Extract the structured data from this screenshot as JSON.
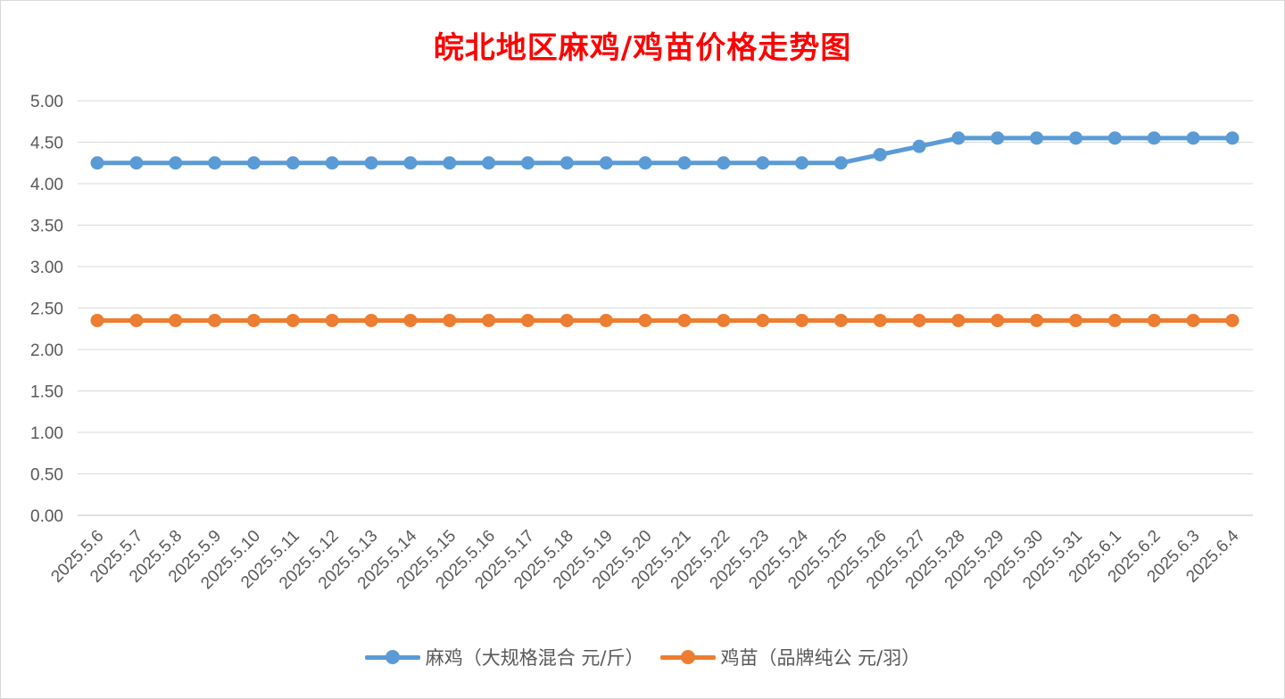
{
  "chart_data": {
    "type": "line",
    "title": "皖北地区麻鸡/鸡苗价格走势图",
    "categories": [
      "2025.5.6",
      "2025.5.7",
      "2025.5.8",
      "2025.5.9",
      "2025.5.10",
      "2025.5.11",
      "2025.5.12",
      "2025.5.13",
      "2025.5.14",
      "2025.5.15",
      "2025.5.16",
      "2025.5.17",
      "2025.5.18",
      "2025.5.19",
      "2025.5.20",
      "2025.5.21",
      "2025.5.22",
      "2025.5.23",
      "2025.5.24",
      "2025.5.25",
      "2025.5.26",
      "2025.5.27",
      "2025.5.28",
      "2025.5.29",
      "2025.5.30",
      "2025.5.31",
      "2025.6.1",
      "2025.6.2",
      "2025.6.3",
      "2025.6.4"
    ],
    "series": [
      {
        "name": "麻鸡（大规格混合 元/斤）",
        "color": "#5b9bd5",
        "values": [
          4.25,
          4.25,
          4.25,
          4.25,
          4.25,
          4.25,
          4.25,
          4.25,
          4.25,
          4.25,
          4.25,
          4.25,
          4.25,
          4.25,
          4.25,
          4.25,
          4.25,
          4.25,
          4.25,
          4.25,
          4.35,
          4.45,
          4.55,
          4.55,
          4.55,
          4.55,
          4.55,
          4.55,
          4.55,
          4.55
        ]
      },
      {
        "name": "鸡苗（品牌纯公 元/羽）",
        "color": "#ed7d31",
        "values": [
          2.35,
          2.35,
          2.35,
          2.35,
          2.35,
          2.35,
          2.35,
          2.35,
          2.35,
          2.35,
          2.35,
          2.35,
          2.35,
          2.35,
          2.35,
          2.35,
          2.35,
          2.35,
          2.35,
          2.35,
          2.35,
          2.35,
          2.35,
          2.35,
          2.35,
          2.35,
          2.35,
          2.35,
          2.35,
          2.35
        ]
      }
    ],
    "yticks": [
      "0.00",
      "0.50",
      "1.00",
      "1.50",
      "2.00",
      "2.50",
      "3.00",
      "3.50",
      "4.00",
      "4.50",
      "5.00"
    ],
    "ylim": [
      0,
      5
    ],
    "grid": true,
    "legend": "bottom"
  }
}
